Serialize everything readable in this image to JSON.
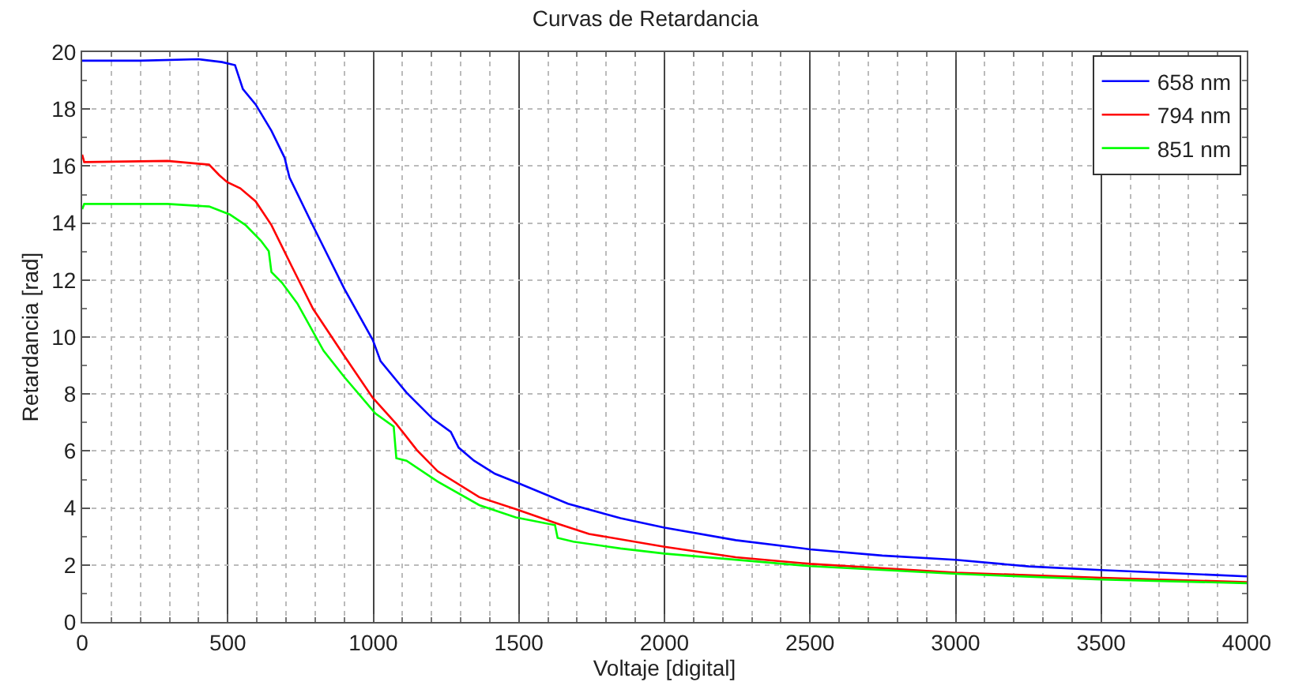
{
  "chart_data": {
    "type": "line",
    "title": "Curvas de Retardancia",
    "xlabel": "Voltaje [digital]",
    "ylabel": "Retardancia [rad]",
    "xlim": [
      0,
      4000
    ],
    "xticks": [
      0,
      500,
      1000,
      1500,
      2000,
      2500,
      3000,
      3500,
      4000
    ],
    "ylim": [
      0,
      20
    ],
    "yticks": [
      0,
      2,
      4,
      6,
      8,
      10,
      12,
      14,
      16,
      18,
      20
    ],
    "grid": true,
    "legend": "top right",
    "line_style": "solid",
    "marker": "none",
    "series": [
      {
        "name": "658 nm",
        "color": "#0000ff",
        "x": [
          0,
          200,
          400,
          480,
          525,
          552,
          596,
          650,
          695,
          712,
          793,
          900,
          998,
          1025,
          1114,
          1204,
          1266,
          1293,
          1346,
          1418,
          1489,
          1669,
          1849,
          2000,
          2245,
          2500,
          2748,
          3000,
          3252,
          3500,
          4000
        ],
        "values": [
          19.7,
          19.7,
          19.75,
          19.65,
          19.54,
          18.7,
          18.16,
          17.24,
          16.3,
          15.6,
          13.9,
          11.7,
          9.9,
          9.15,
          8.05,
          7.13,
          6.67,
          6.12,
          5.66,
          5.2,
          4.91,
          4.15,
          3.64,
          3.31,
          2.87,
          2.55,
          2.33,
          2.18,
          1.95,
          1.82,
          1.6
        ]
      },
      {
        "name": "794 nm",
        "color": "#ff0000",
        "x": [
          0,
          7,
          293,
          436,
          471,
          498,
          543,
          596,
          650,
          721,
          793,
          900,
          998,
          1079,
          1150,
          1221,
          1364,
          1489,
          1633,
          1741,
          2000,
          2245,
          2500,
          3000,
          3500,
          4000
        ],
        "values": [
          16.4,
          16.14,
          16.18,
          16.05,
          15.68,
          15.44,
          15.22,
          14.76,
          13.93,
          12.46,
          10.99,
          9.34,
          7.87,
          6.95,
          6.03,
          5.29,
          4.38,
          3.96,
          3.45,
          3.09,
          2.64,
          2.27,
          2.04,
          1.73,
          1.55,
          1.4
        ]
      },
      {
        "name": "851 nm",
        "color": "#00ff00",
        "x": [
          0,
          7,
          293,
          436,
          507,
          561,
          614,
          641,
          650,
          686,
          739,
          829,
          900,
          1007,
          1070,
          1079,
          1114,
          1221,
          1364,
          1489,
          1624,
          1633,
          1687,
          1849,
          2000,
          2500,
          3000,
          3500,
          4000
        ],
        "values": [
          14.49,
          14.67,
          14.67,
          14.58,
          14.3,
          13.93,
          13.38,
          13.01,
          12.28,
          11.91,
          11.18,
          9.52,
          8.6,
          7.32,
          6.86,
          5.75,
          5.66,
          4.93,
          4.1,
          3.67,
          3.4,
          2.95,
          2.82,
          2.58,
          2.4,
          1.96,
          1.69,
          1.49,
          1.36
        ]
      }
    ]
  }
}
